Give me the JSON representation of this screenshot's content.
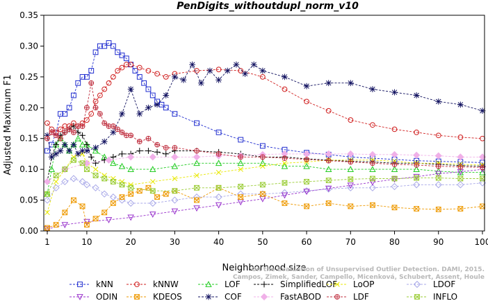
{
  "chart_data": {
    "type": "line",
    "title": "PenDigits_withoutdupl_norm_v10",
    "xlabel": "Neighborhood size",
    "ylabel": "Adjusted Maximum F1",
    "xlim": [
      1,
      100
    ],
    "ylim": [
      0,
      0.35
    ],
    "xticks": [
      1,
      10,
      20,
      30,
      40,
      50,
      60,
      70,
      80,
      90,
      100
    ],
    "yticks": [
      0.0,
      0.05,
      0.1,
      0.15,
      0.2,
      0.25,
      0.3,
      0.35
    ],
    "grid": false,
    "legend_position": "bottom",
    "attribution": "Campos, Zimek, Sander, Campello, Micenková, Schubert, Assent, Houle",
    "attribution_line1": "On the Evaluation of Unsupervised Outlier Detection. DAMI, 2015.",
    "series": [
      {
        "name": "kNN",
        "color": "#1f2ccf",
        "marker": "square",
        "x": [
          1,
          2,
          3,
          4,
          5,
          6,
          7,
          8,
          9,
          10,
          11,
          12,
          13,
          14,
          15,
          16,
          17,
          18,
          19,
          20,
          21,
          22,
          23,
          24,
          25,
          26,
          27,
          28,
          30,
          35,
          40,
          45,
          50,
          55,
          60,
          65,
          70,
          75,
          80,
          85,
          90,
          95,
          100
        ],
        "y": [
          0.13,
          0.14,
          0.16,
          0.19,
          0.19,
          0.2,
          0.22,
          0.24,
          0.25,
          0.25,
          0.26,
          0.29,
          0.3,
          0.3,
          0.305,
          0.3,
          0.29,
          0.285,
          0.28,
          0.27,
          0.26,
          0.25,
          0.24,
          0.23,
          0.22,
          0.21,
          0.205,
          0.2,
          0.19,
          0.175,
          0.16,
          0.148,
          0.138,
          0.132,
          0.127,
          0.124,
          0.12,
          0.118,
          0.116,
          0.114,
          0.113,
          0.112,
          0.111
        ]
      },
      {
        "name": "kNNW",
        "color": "#d01f1f",
        "marker": "circle",
        "x": [
          1,
          2,
          3,
          4,
          5,
          6,
          7,
          8,
          9,
          10,
          11,
          12,
          13,
          14,
          15,
          16,
          17,
          18,
          19,
          20,
          22,
          24,
          26,
          28,
          30,
          35,
          40,
          45,
          50,
          55,
          60,
          65,
          70,
          75,
          80,
          85,
          90,
          95,
          100
        ],
        "y": [
          0.175,
          0.165,
          0.16,
          0.165,
          0.17,
          0.17,
          0.175,
          0.17,
          0.175,
          0.18,
          0.19,
          0.21,
          0.22,
          0.23,
          0.24,
          0.25,
          0.26,
          0.265,
          0.27,
          0.27,
          0.265,
          0.26,
          0.255,
          0.25,
          0.255,
          0.26,
          0.262,
          0.26,
          0.25,
          0.23,
          0.21,
          0.195,
          0.18,
          0.172,
          0.165,
          0.16,
          0.155,
          0.152,
          0.15
        ]
      },
      {
        "name": "LOF",
        "color": "#22cc22",
        "marker": "triangle",
        "x": [
          1,
          2,
          3,
          4,
          5,
          6,
          7,
          8,
          9,
          10,
          12,
          14,
          16,
          18,
          20,
          25,
          30,
          35,
          40,
          45,
          50,
          55,
          60,
          65,
          70,
          75,
          80,
          85,
          90,
          95,
          100
        ],
        "y": [
          0.06,
          0.1,
          0.14,
          0.15,
          0.14,
          0.13,
          0.14,
          0.15,
          0.14,
          0.14,
          0.13,
          0.12,
          0.11,
          0.105,
          0.1,
          0.1,
          0.105,
          0.11,
          0.11,
          0.11,
          0.11,
          0.105,
          0.105,
          0.1,
          0.1,
          0.1,
          0.1,
          0.1,
          0.097,
          0.095,
          0.095
        ]
      },
      {
        "name": "SimplifiedLOF",
        "color": "#000000",
        "marker": "plus",
        "x": [
          1,
          2,
          3,
          4,
          5,
          6,
          7,
          8,
          9,
          10,
          11,
          12,
          14,
          16,
          18,
          20,
          22,
          24,
          26,
          28,
          30,
          35,
          40,
          45,
          50,
          55,
          60,
          65,
          70,
          75,
          80,
          85,
          90,
          95,
          100
        ],
        "y": [
          0.08,
          0.12,
          0.14,
          0.155,
          0.16,
          0.165,
          0.17,
          0.16,
          0.155,
          0.14,
          0.12,
          0.11,
          0.115,
          0.12,
          0.125,
          0.125,
          0.13,
          0.13,
          0.128,
          0.125,
          0.13,
          0.13,
          0.128,
          0.125,
          0.12,
          0.12,
          0.117,
          0.115,
          0.113,
          0.112,
          0.11,
          0.11,
          0.108,
          0.106,
          0.105
        ]
      },
      {
        "name": "LoOP",
        "color": "#e8e800",
        "marker": "x",
        "x": [
          1,
          3,
          5,
          7,
          9,
          10,
          12,
          14,
          16,
          18,
          20,
          25,
          30,
          35,
          40,
          45,
          50,
          55,
          60,
          65,
          70,
          75,
          80,
          85,
          90,
          95,
          100
        ],
        "y": [
          0.03,
          0.08,
          0.1,
          0.12,
          0.125,
          0.11,
          0.1,
          0.09,
          0.085,
          0.08,
          0.075,
          0.08,
          0.085,
          0.09,
          0.095,
          0.1,
          0.105,
          0.11,
          0.112,
          0.115,
          0.115,
          0.115,
          0.113,
          0.11,
          0.11,
          0.108,
          0.107
        ]
      },
      {
        "name": "LDOF",
        "color": "#a8a8e8",
        "marker": "diamond",
        "x": [
          1,
          3,
          5,
          7,
          9,
          10,
          12,
          14,
          16,
          18,
          20,
          25,
          30,
          35,
          40,
          45,
          50,
          55,
          60,
          65,
          70,
          75,
          80,
          85,
          90,
          95,
          100
        ],
        "y": [
          0.05,
          0.07,
          0.08,
          0.085,
          0.08,
          0.075,
          0.07,
          0.06,
          0.055,
          0.05,
          0.045,
          0.045,
          0.05,
          0.055,
          0.055,
          0.06,
          0.06,
          0.062,
          0.065,
          0.068,
          0.07,
          0.07,
          0.072,
          0.075,
          0.075,
          0.075,
          0.078
        ]
      },
      {
        "name": "ODIN",
        "color": "#9933cc",
        "marker": "triangle-down",
        "x": [
          1,
          5,
          10,
          15,
          20,
          25,
          30,
          35,
          40,
          45,
          50,
          55,
          60,
          65,
          70,
          75,
          80,
          85,
          90,
          95,
          100
        ],
        "y": [
          0.003,
          0.01,
          0.015,
          0.018,
          0.022,
          0.027,
          0.032,
          0.037,
          0.042,
          0.047,
          0.052,
          0.058,
          0.064,
          0.069,
          0.074,
          0.079,
          0.084,
          0.088,
          0.093,
          0.096,
          0.1
        ]
      },
      {
        "name": "KDEOS",
        "color": "#ee9900",
        "marker": "square-x",
        "x": [
          1,
          3,
          5,
          7,
          9,
          10,
          12,
          14,
          16,
          18,
          20,
          22,
          24,
          26,
          28,
          30,
          35,
          40,
          45,
          50,
          55,
          60,
          65,
          70,
          75,
          80,
          85,
          90,
          95,
          100
        ],
        "y": [
          0.005,
          0.01,
          0.03,
          0.05,
          0.04,
          0.01,
          0.02,
          0.03,
          0.045,
          0.055,
          0.06,
          0.065,
          0.07,
          0.055,
          0.06,
          0.065,
          0.05,
          0.07,
          0.055,
          0.06,
          0.045,
          0.04,
          0.045,
          0.04,
          0.042,
          0.038,
          0.036,
          0.035,
          0.036,
          0.04
        ]
      },
      {
        "name": "COF",
        "color": "#121260",
        "marker": "star",
        "x": [
          1,
          2,
          3,
          4,
          5,
          6,
          7,
          8,
          9,
          10,
          12,
          14,
          16,
          18,
          20,
          22,
          24,
          26,
          28,
          30,
          32,
          34,
          36,
          38,
          40,
          42,
          44,
          46,
          48,
          50,
          55,
          60,
          65,
          70,
          75,
          80,
          85,
          90,
          95,
          100
        ],
        "y": [
          0.155,
          0.12,
          0.125,
          0.13,
          0.14,
          0.13,
          0.14,
          0.125,
          0.13,
          0.13,
          0.135,
          0.145,
          0.16,
          0.19,
          0.23,
          0.19,
          0.2,
          0.205,
          0.22,
          0.25,
          0.245,
          0.27,
          0.24,
          0.26,
          0.245,
          0.26,
          0.27,
          0.255,
          0.27,
          0.26,
          0.25,
          0.235,
          0.24,
          0.24,
          0.23,
          0.225,
          0.22,
          0.21,
          0.205,
          0.195
        ]
      },
      {
        "name": "FastABOD",
        "color": "#f0b0e8",
        "marker": "diamond-filled",
        "x": [
          1,
          5,
          10,
          15,
          20,
          25,
          30,
          35,
          40,
          45,
          50,
          55,
          60,
          65,
          70,
          75,
          80,
          85,
          90,
          95,
          100
        ],
        "y": [
          0.08,
          0.1,
          0.11,
          0.115,
          0.12,
          0.12,
          0.12,
          0.12,
          0.122,
          0.122,
          0.124,
          0.125,
          0.125,
          0.125,
          0.125,
          0.124,
          0.124,
          0.123,
          0.122,
          0.12,
          0.12
        ]
      },
      {
        "name": "LDF",
        "color": "#c03040",
        "marker": "circle-plus",
        "x": [
          1,
          2,
          3,
          4,
          5,
          6,
          7,
          8,
          9,
          10,
          11,
          12,
          13,
          14,
          15,
          16,
          17,
          18,
          19,
          20,
          22,
          24,
          26,
          28,
          30,
          35,
          40,
          45,
          50,
          55,
          60,
          65,
          70,
          75,
          80,
          85,
          90,
          95,
          100
        ],
        "y": [
          0.15,
          0.16,
          0.155,
          0.15,
          0.16,
          0.165,
          0.16,
          0.17,
          0.17,
          0.2,
          0.24,
          0.2,
          0.19,
          0.175,
          0.17,
          0.17,
          0.165,
          0.16,
          0.155,
          0.155,
          0.145,
          0.15,
          0.14,
          0.135,
          0.135,
          0.13,
          0.125,
          0.12,
          0.12,
          0.118,
          0.116,
          0.114,
          0.112,
          0.11,
          0.108,
          0.107,
          0.105,
          0.104,
          0.103
        ]
      },
      {
        "name": "INFLO",
        "color": "#99cc33",
        "marker": "hourglass",
        "x": [
          1,
          3,
          5,
          7,
          9,
          10,
          12,
          14,
          16,
          18,
          20,
          25,
          30,
          35,
          40,
          45,
          50,
          55,
          60,
          65,
          70,
          75,
          80,
          85,
          90,
          95,
          100
        ],
        "y": [
          0.06,
          0.09,
          0.1,
          0.115,
          0.11,
          0.1,
          0.09,
          0.085,
          0.08,
          0.075,
          0.07,
          0.065,
          0.065,
          0.07,
          0.07,
          0.072,
          0.075,
          0.078,
          0.08,
          0.082,
          0.084,
          0.085,
          0.085,
          0.086,
          0.086,
          0.085,
          0.085
        ]
      }
    ]
  }
}
